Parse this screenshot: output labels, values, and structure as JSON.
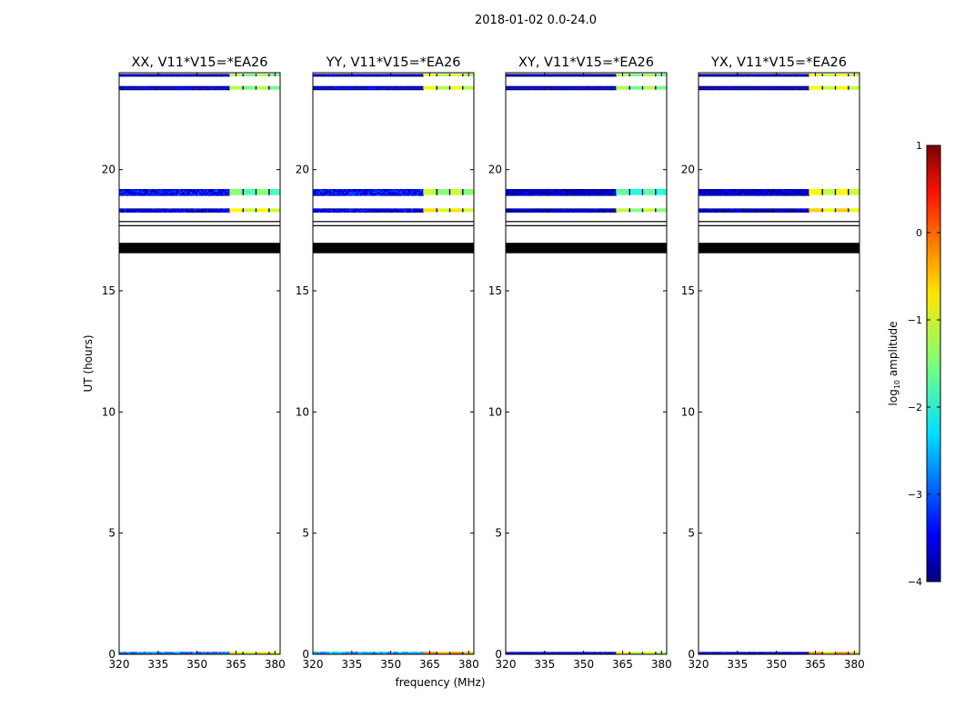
{
  "figure_title": "2018-01-02 0.0-24.0",
  "colors": {
    "frame": "#000000",
    "background": "#ffffff",
    "blank_band": "#000000",
    "colormap": "jet"
  },
  "colorbar": {
    "label_prefix": "log",
    "label_sub": "10",
    "label_suffix": " amplitude",
    "ticks": [
      "1",
      "0",
      "−1",
      "−2",
      "−3",
      "−4"
    ],
    "range": [
      -4,
      1
    ]
  },
  "chart_data": {
    "type": "heatmap",
    "xlabel": "frequency (MHz)",
    "ylabel": "UT (hours)",
    "xlim": [
      320,
      382
    ],
    "ylim": [
      0,
      24
    ],
    "xticks": [
      "320",
      "335",
      "350",
      "365",
      "380"
    ],
    "yticks": [
      "0",
      "5",
      "10",
      "15",
      "20"
    ],
    "panels": [
      {
        "title": "XX, V11*V15=*EA26",
        "bands": [
          {
            "t0": 0.0,
            "t1": 0.1,
            "low": -2.8,
            "high": -0.9
          },
          {
            "t0": 18.25,
            "t1": 18.4,
            "low": -3.6,
            "high": -1.0
          },
          {
            "t0": 18.95,
            "t1": 19.2,
            "low": -3.4,
            "high": -1.6
          },
          {
            "t0": 23.3,
            "t1": 23.45,
            "low": -3.8,
            "high": -1.4
          },
          {
            "t0": 23.85,
            "t1": 23.95,
            "low": -3.8,
            "high": -1.4
          }
        ]
      },
      {
        "title": "YY, V11*V15=*EA26",
        "bands": [
          {
            "t0": 0.0,
            "t1": 0.1,
            "low": -2.6,
            "high": -0.4
          },
          {
            "t0": 18.25,
            "t1": 18.4,
            "low": -3.6,
            "high": -0.9
          },
          {
            "t0": 18.95,
            "t1": 19.2,
            "low": -3.4,
            "high": -1.3
          },
          {
            "t0": 23.3,
            "t1": 23.45,
            "low": -3.8,
            "high": -1.1
          },
          {
            "t0": 23.85,
            "t1": 23.95,
            "low": -3.8,
            "high": -1.1
          }
        ]
      },
      {
        "title": "XY, V11*V15=*EA26",
        "bands": [
          {
            "t0": 0.0,
            "t1": 0.1,
            "low": -3.6,
            "high": -1.1
          },
          {
            "t0": 18.25,
            "t1": 18.4,
            "low": -3.8,
            "high": -1.3
          },
          {
            "t0": 18.95,
            "t1": 19.2,
            "low": -3.7,
            "high": -1.8
          },
          {
            "t0": 23.3,
            "t1": 23.45,
            "low": -3.9,
            "high": -1.4
          },
          {
            "t0": 23.85,
            "t1": 23.95,
            "low": -3.9,
            "high": -1.4
          }
        ]
      },
      {
        "title": "YX, V11*V15=*EA26",
        "bands": [
          {
            "t0": 0.0,
            "t1": 0.1,
            "low": -3.6,
            "high": -0.5
          },
          {
            "t0": 18.25,
            "t1": 18.4,
            "low": -3.8,
            "high": -0.8
          },
          {
            "t0": 18.95,
            "t1": 19.2,
            "low": -3.7,
            "high": -1.0
          },
          {
            "t0": 23.3,
            "t1": 23.45,
            "low": -3.9,
            "high": -1.0
          },
          {
            "t0": 23.85,
            "t1": 23.95,
            "low": -3.9,
            "high": -1.0
          }
        ]
      }
    ],
    "blank_rows": [
      {
        "t0": 17.85,
        "t1": 17.88
      },
      {
        "t0": 17.68,
        "t1": 17.71
      },
      {
        "t0": 16.55,
        "t1": 16.98
      }
    ],
    "split_freq": 362.5,
    "chunk_edges": [
      362.5,
      368,
      373,
      378,
      383
    ],
    "colorscale": [
      -4,
      1
    ]
  }
}
